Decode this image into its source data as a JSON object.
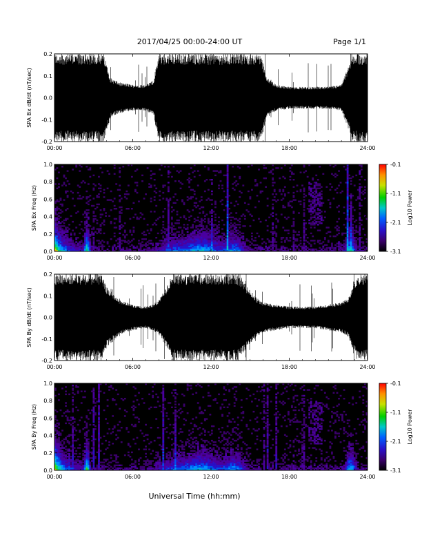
{
  "header": {
    "title": "2017/04/25  00:00-24:00 UT",
    "page": "Page 1/1"
  },
  "footer": {
    "xlabel": "Universal Time (hh:mm)"
  },
  "colors": {
    "trace": "#000000",
    "background": "#000000"
  },
  "chart_data": [
    {
      "type": "line",
      "ylabel": "SPA Bx dB/dt (nT/sec)",
      "x_ticks": [
        "00:00",
        "06:00",
        "12:00",
        "18:00",
        "24:00"
      ],
      "y_ticks": [
        "-0.2",
        "-0.1",
        "0.0",
        "0.1",
        "0.2"
      ],
      "xlim": [
        0,
        24
      ],
      "ylim": [
        -0.2,
        0.2
      ],
      "envelope": {
        "x_hours": [
          0,
          1,
          2,
          3,
          3.8,
          4.3,
          5,
          6,
          7,
          7.6,
          8.0,
          8.1,
          9,
          10,
          11,
          12,
          13,
          14,
          15,
          15.8,
          16.3,
          17,
          18,
          19,
          20,
          21,
          22,
          22.9,
          23.3,
          23.6,
          24
        ],
        "amplitude": [
          0.2,
          0.2,
          0.2,
          0.2,
          0.2,
          0.09,
          0.07,
          0.06,
          0.06,
          0.08,
          0.2,
          0.2,
          0.2,
          0.2,
          0.2,
          0.2,
          0.2,
          0.2,
          0.2,
          0.2,
          0.09,
          0.06,
          0.05,
          0.05,
          0.05,
          0.05,
          0.06,
          0.2,
          0.2,
          0.2,
          0.2
        ]
      }
    },
    {
      "type": "heatmap",
      "ylabel": "SPA Bx Freq (Hz)",
      "colorbar_label": "Log10 Power",
      "colorbar_ticks": [
        "-0.1",
        "-1.1",
        "-2.1",
        "-3.1"
      ],
      "x_ticks": [
        "00:00",
        "06:00",
        "12:00",
        "18:00",
        "24:00"
      ],
      "y_ticks": [
        "0.0",
        "0.2",
        "0.4",
        "0.6",
        "0.8",
        "1.0"
      ],
      "xlim": [
        0,
        24
      ],
      "ylim": [
        0,
        1
      ],
      "clim": [
        -3.1,
        -0.1
      ]
    },
    {
      "type": "line",
      "ylabel": "SPA By dB/dt (nT/sec)",
      "x_ticks": [
        "00:00",
        "06:00",
        "12:00",
        "18:00",
        "24:00"
      ],
      "y_ticks": [
        "-0.2",
        "-0.1",
        "0.0",
        "0.1",
        "0.2"
      ],
      "xlim": [
        0,
        24
      ],
      "ylim": [
        -0.2,
        0.2
      ],
      "envelope": {
        "x_hours": [
          0,
          1,
          2,
          3,
          3.6,
          4.0,
          5,
          6,
          7,
          7.5,
          8,
          8.6,
          9,
          10,
          11,
          12,
          13,
          14,
          15,
          15.5,
          16,
          17,
          18,
          19,
          20,
          21,
          22,
          22.5,
          23.2,
          23.6,
          24
        ],
        "amplitude": [
          0.2,
          0.2,
          0.2,
          0.2,
          0.2,
          0.14,
          0.08,
          0.06,
          0.05,
          0.06,
          0.08,
          0.14,
          0.2,
          0.2,
          0.2,
          0.2,
          0.2,
          0.2,
          0.13,
          0.09,
          0.07,
          0.06,
          0.05,
          0.05,
          0.05,
          0.06,
          0.07,
          0.09,
          0.2,
          0.2,
          0.2
        ]
      }
    },
    {
      "type": "heatmap",
      "ylabel": "SPA By Freq (Hz)",
      "colorbar_label": "Log10 Power",
      "colorbar_ticks": [
        "-0.1",
        "-1.1",
        "-2.1",
        "-3.1"
      ],
      "x_ticks": [
        "00:00",
        "06:00",
        "12:00",
        "18:00",
        "24:00"
      ],
      "y_ticks": [
        "0.0",
        "0.2",
        "0.4",
        "0.6",
        "0.8",
        "1.0"
      ],
      "xlim": [
        0,
        24
      ],
      "ylim": [
        0,
        1
      ],
      "clim": [
        -3.1,
        -0.1
      ]
    }
  ]
}
